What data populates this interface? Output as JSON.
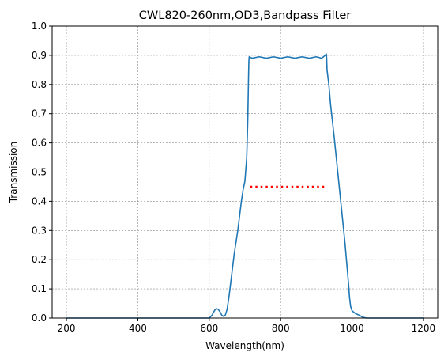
{
  "chart_data": {
    "type": "line",
    "title": "CWL820-260nm,OD3,Bandpass Filter",
    "xlabel": "Wavelength(nm)",
    "ylabel": "Transmission",
    "xlim": [
      160,
      1240
    ],
    "ylim": [
      0,
      1.0
    ],
    "xticks": [
      200,
      400,
      600,
      800,
      1000,
      1200
    ],
    "yticks": [
      0.0,
      0.1,
      0.2,
      0.3,
      0.4,
      0.5,
      0.6,
      0.7,
      0.8,
      0.9,
      1.0
    ],
    "grid": true,
    "series": [
      {
        "color": "#1f77b4",
        "style": "solid",
        "x": [
          200,
          400,
          600,
          608,
          612,
          616,
          620,
          625,
          630,
          635,
          640,
          645,
          650,
          655,
          660,
          665,
          670,
          675,
          680,
          685,
          690,
          695,
          700,
          705,
          708,
          710,
          711,
          712,
          720,
          740,
          760,
          780,
          800,
          820,
          840,
          860,
          880,
          900,
          915,
          925,
          928,
          929,
          930,
          935,
          940,
          950,
          960,
          970,
          980,
          990,
          993,
          996,
          1000,
          1005,
          1010,
          1020,
          1030,
          1040,
          1100,
          1200
        ],
        "y": [
          0.0,
          0.0,
          0.0,
          0.01,
          0.02,
          0.028,
          0.032,
          0.03,
          0.022,
          0.01,
          0.006,
          0.01,
          0.03,
          0.07,
          0.12,
          0.17,
          0.22,
          0.26,
          0.3,
          0.35,
          0.4,
          0.44,
          0.47,
          0.55,
          0.68,
          0.82,
          0.88,
          0.895,
          0.89,
          0.895,
          0.89,
          0.895,
          0.89,
          0.895,
          0.89,
          0.895,
          0.89,
          0.895,
          0.89,
          0.9,
          0.905,
          0.89,
          0.85,
          0.8,
          0.73,
          0.62,
          0.5,
          0.38,
          0.26,
          0.12,
          0.07,
          0.04,
          0.025,
          0.02,
          0.015,
          0.01,
          0.003,
          0.0,
          0.0,
          0.0
        ]
      },
      {
        "color": "#ff0000",
        "style": "dotted",
        "x": [
          715,
          925
        ],
        "y": [
          0.45,
          0.45
        ]
      }
    ]
  }
}
